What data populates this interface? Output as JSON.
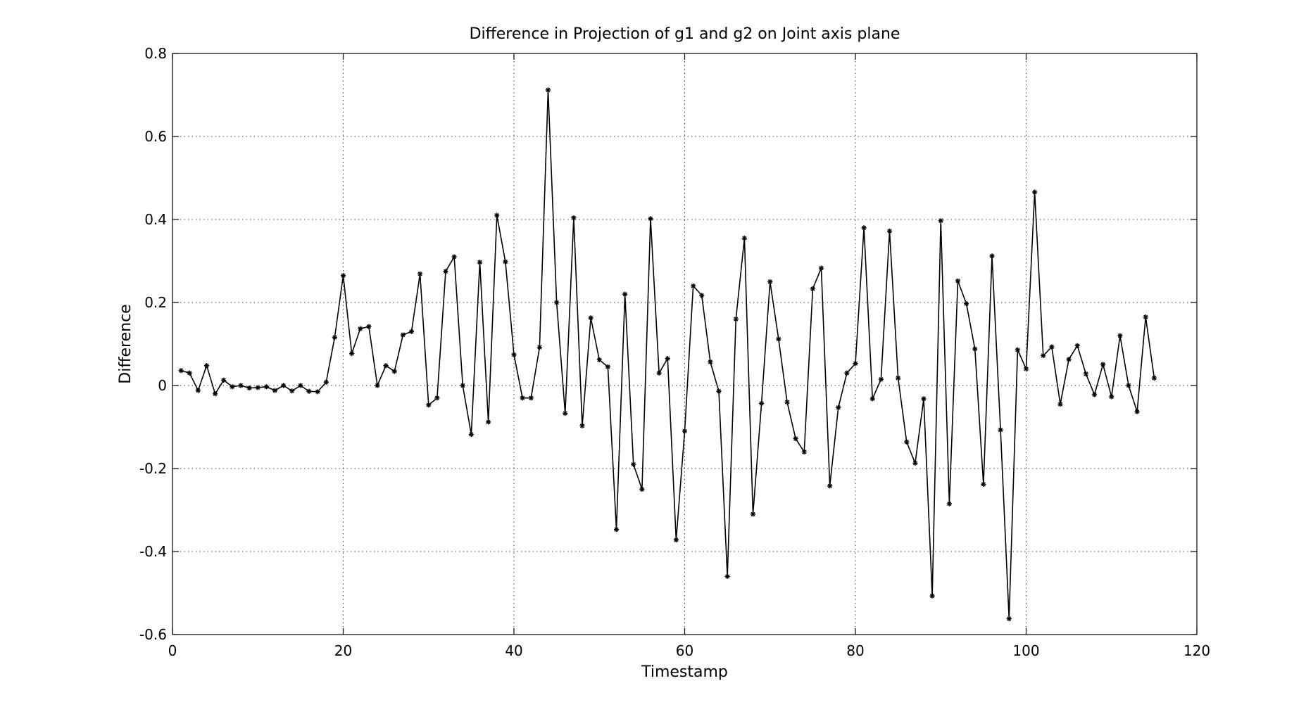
{
  "chart_data": {
    "type": "line",
    "title": "Difference in Projection of g1 and g2 on Joint axis plane",
    "xlabel": "Timestamp",
    "ylabel": "Difference",
    "xlim": [
      0,
      120
    ],
    "ylim": [
      -0.6,
      0.8
    ],
    "xticks": [
      0,
      20,
      40,
      60,
      80,
      100,
      120
    ],
    "yticks": [
      -0.6,
      -0.4,
      -0.2,
      0,
      0.2,
      0.4,
      0.6,
      0.8
    ],
    "xtick_labels": [
      "0",
      "20",
      "40",
      "60",
      "80",
      "100",
      "120"
    ],
    "ytick_labels": [
      "-0.6",
      "-0.4",
      "-0.2",
      "0",
      "0.2",
      "0.4",
      "0.6",
      "0.8"
    ],
    "grid": true,
    "legend": "none",
    "series": [
      {
        "marker": "star",
        "color": "#000000",
        "x": [
          1,
          2,
          3,
          4,
          5,
          6,
          7,
          8,
          9,
          10,
          11,
          12,
          13,
          14,
          15,
          16,
          17,
          18,
          19,
          20,
          21,
          22,
          23,
          24,
          25,
          26,
          27,
          28,
          29,
          30,
          31,
          32,
          33,
          34,
          35,
          36,
          37,
          38,
          39,
          40,
          41,
          42,
          43,
          44,
          45,
          46,
          47,
          48,
          49,
          50,
          51,
          52,
          53,
          54,
          55,
          56,
          57,
          58,
          59,
          60,
          61,
          62,
          63,
          64,
          65,
          66,
          67,
          68,
          69,
          70,
          71,
          72,
          73,
          74,
          75,
          76,
          77,
          78,
          79,
          80,
          81,
          82,
          83,
          84,
          85,
          86,
          87,
          88,
          89,
          90,
          91,
          92,
          93,
          94,
          95,
          96,
          97,
          98,
          99,
          100,
          101,
          102,
          103,
          104,
          105,
          106,
          107,
          108,
          109,
          110,
          111,
          112,
          113,
          114,
          115
        ],
        "y": [
          0.036,
          0.03,
          -0.012,
          0.048,
          -0.02,
          0.013,
          -0.003,
          0.0,
          -0.006,
          -0.005,
          -0.003,
          -0.012,
          0.0,
          -0.013,
          0.0,
          -0.014,
          -0.015,
          0.008,
          0.116,
          0.265,
          0.077,
          0.137,
          0.142,
          0.0,
          0.048,
          0.034,
          0.122,
          0.13,
          0.269,
          -0.047,
          -0.03,
          0.275,
          0.31,
          0.0,
          -0.118,
          0.297,
          -0.088,
          0.41,
          0.298,
          0.074,
          -0.03,
          -0.03,
          0.092,
          0.712,
          0.2,
          -0.067,
          0.404,
          -0.097,
          0.163,
          0.062,
          0.045,
          -0.347,
          0.22,
          -0.19,
          -0.25,
          0.402,
          0.03,
          0.065,
          -0.372,
          -0.11,
          0.24,
          0.217,
          0.057,
          -0.014,
          -0.46,
          0.16,
          0.355,
          -0.31,
          -0.043,
          0.25,
          0.112,
          -0.04,
          -0.128,
          -0.16,
          0.233,
          0.283,
          -0.242,
          -0.053,
          0.03,
          0.053,
          0.38,
          -0.032,
          0.015,
          0.372,
          0.018,
          -0.136,
          -0.187,
          -0.032,
          -0.507,
          0.397,
          -0.285,
          0.252,
          0.197,
          0.088,
          -0.238,
          0.312,
          -0.107,
          -0.562,
          0.086,
          0.04,
          0.466,
          0.072,
          0.093,
          -0.045,
          0.063,
          0.096,
          0.028,
          -0.022,
          0.051,
          -0.027,
          0.12,
          0.0,
          -0.063,
          0.165,
          0.018
        ]
      }
    ]
  }
}
